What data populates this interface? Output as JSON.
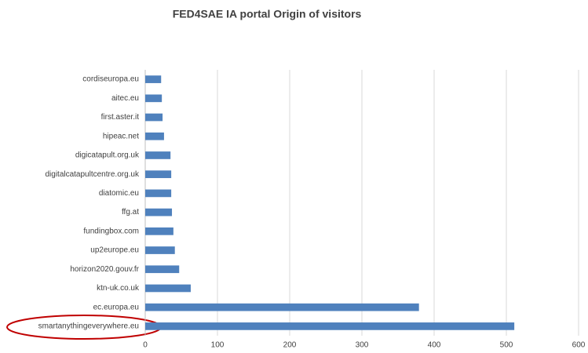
{
  "chart_data": {
    "type": "bar",
    "orientation": "horizontal",
    "title": "FED4SAE IA portal Origin of visitors",
    "categories": [
      "cordiseuropa.eu",
      "aitec.eu",
      "first.aster.it",
      "hipeac.net",
      "digicatapult.org.uk",
      "digitalcatapultcentre.org.uk",
      "diatomic.eu",
      "ffg.at",
      "fundingbox.com",
      "up2europe.eu",
      "horizon2020.gouv.fr",
      "ktn-uk.co.uk",
      "ec.europa.eu",
      "smartanythingeverywhere.eu"
    ],
    "values": [
      22,
      23,
      24,
      26,
      35,
      36,
      36,
      37,
      39,
      41,
      47,
      63,
      379,
      511
    ],
    "color": "#4f81bd",
    "xlim": [
      0,
      600
    ],
    "xticks": [
      0,
      100,
      200,
      300,
      400,
      500,
      600
    ],
    "grid": true
  }
}
